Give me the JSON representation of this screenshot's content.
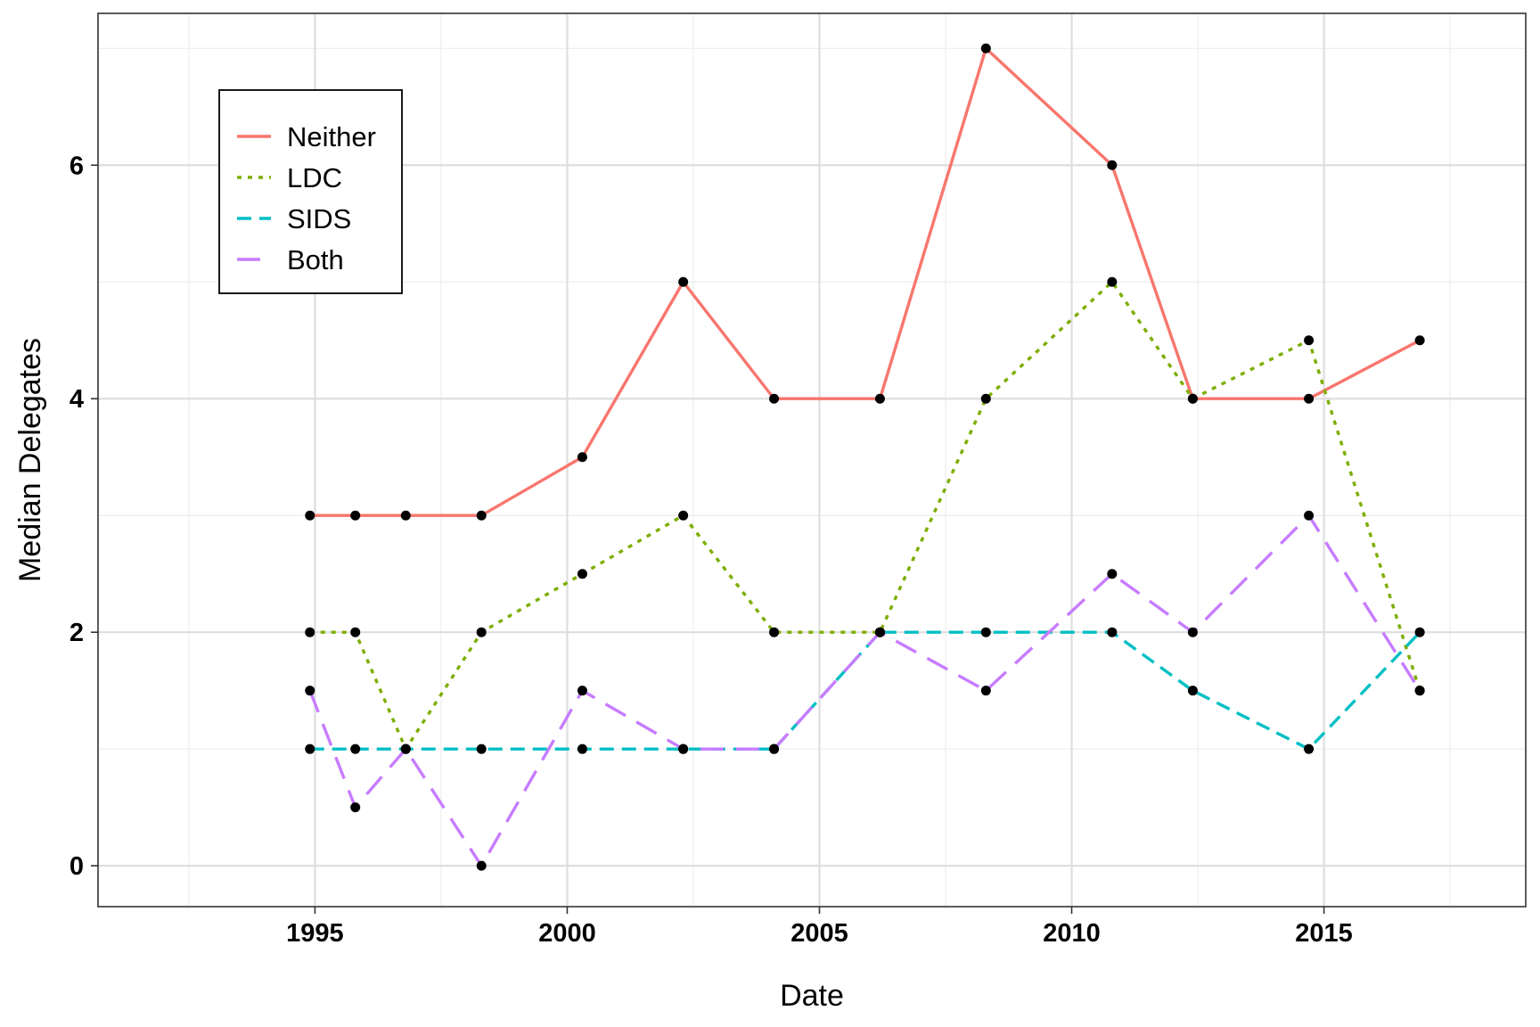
{
  "chart_data": {
    "type": "line",
    "title": "",
    "xlabel": "Date",
    "ylabel": "Median Delegates",
    "xlim": [
      1990.7,
      2019.0
    ],
    "ylim": [
      -0.35,
      7.3
    ],
    "x_ticks": [
      1995,
      2000,
      2005,
      2010,
      2015
    ],
    "x_minor_ticks": [
      1992.5,
      1997.5,
      2002.5,
      2007.5,
      2012.5,
      2017.5
    ],
    "y_ticks": [
      0,
      2,
      4,
      6
    ],
    "y_minor_ticks": [
      1,
      3,
      5,
      7
    ],
    "grid": true,
    "legend_position": "top-left",
    "point_color": "#000000",
    "series": [
      {
        "name": "Neither",
        "color": "#F8766D",
        "dash": "solid",
        "x": [
          1994.9,
          1995.8,
          1996.8,
          1998.3,
          2000.3,
          2002.3,
          2004.1,
          2006.2,
          2008.3,
          2010.8,
          2012.4,
          2014.7,
          2016.9
        ],
        "y": [
          3,
          3,
          3,
          3,
          3.5,
          5,
          4,
          4,
          7,
          6,
          4,
          4,
          4.5
        ]
      },
      {
        "name": "LDC",
        "color": "#7CAE00",
        "dash": "dotted",
        "x": [
          1994.9,
          1995.8,
          1996.8,
          1998.3,
          2000.3,
          2002.3,
          2004.1,
          2006.2,
          2008.3,
          2010.8,
          2012.4,
          2014.7,
          2016.9
        ],
        "y": [
          2,
          2,
          1,
          2,
          2.5,
          3,
          2,
          2,
          4,
          5,
          4,
          4.5,
          1.5
        ]
      },
      {
        "name": "SIDS",
        "color": "#00BFC4",
        "dash": "dashed",
        "x": [
          1994.9,
          1995.8,
          1996.8,
          1998.3,
          2000.3,
          2002.3,
          2004.1,
          2006.2,
          2008.3,
          2010.8,
          2012.4,
          2014.7,
          2016.9
        ],
        "y": [
          1,
          1,
          1,
          1,
          1,
          1,
          1,
          2,
          2,
          2,
          1.5,
          1,
          2
        ]
      },
      {
        "name": "Both",
        "color": "#C77CFF",
        "dash": "longdash",
        "x": [
          1994.9,
          1995.8,
          1996.8,
          1998.3,
          2000.3,
          2002.3,
          2004.1,
          2006.2,
          2008.3,
          2010.8,
          2012.4,
          2014.7,
          2016.9
        ],
        "y": [
          1.5,
          0.5,
          1,
          0,
          1.5,
          1,
          1,
          2,
          1.5,
          2.5,
          2,
          3,
          1.5
        ]
      }
    ]
  }
}
